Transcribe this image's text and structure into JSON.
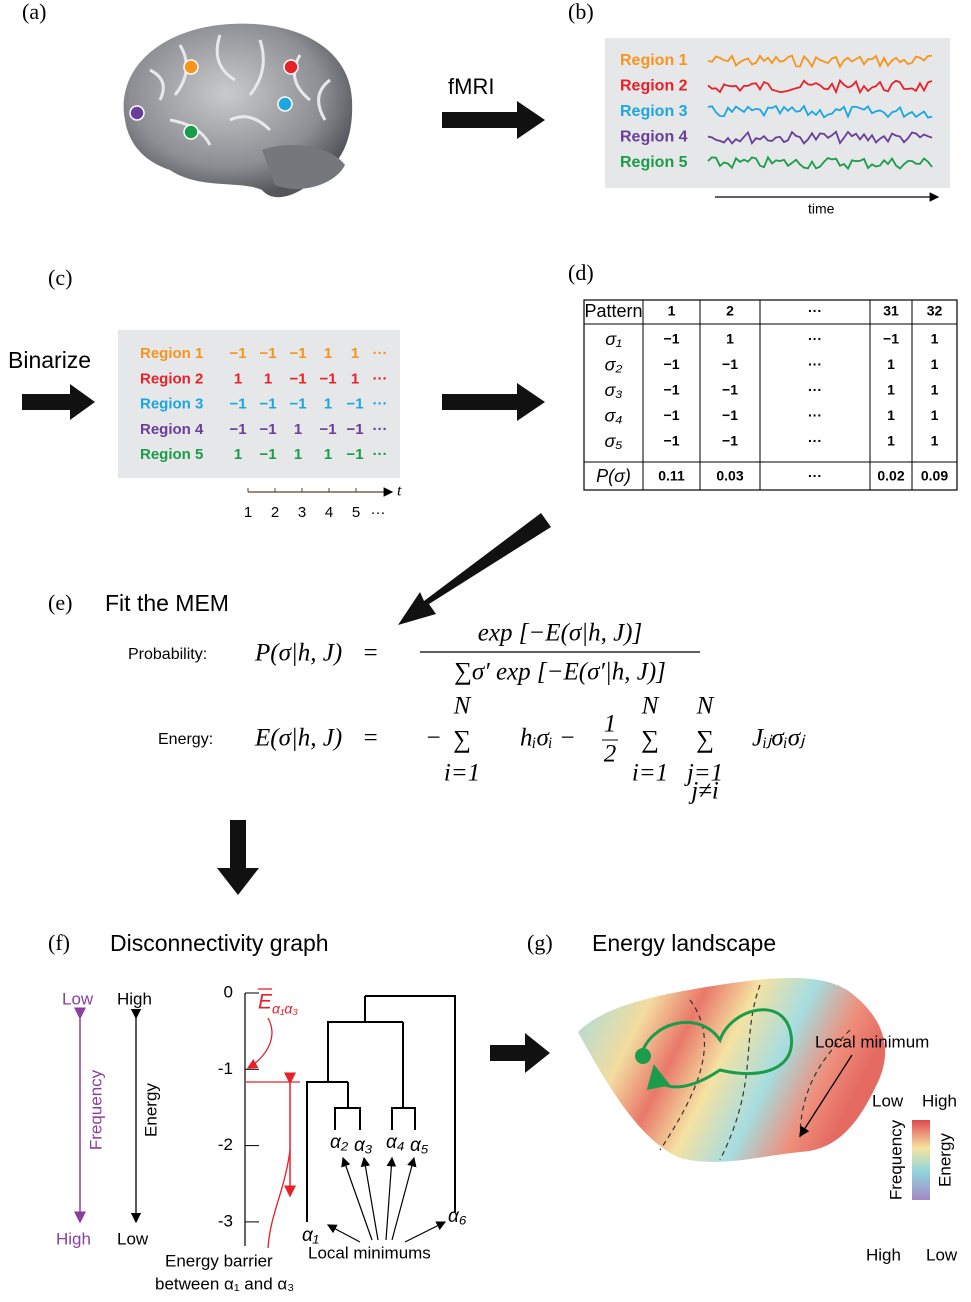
{
  "a": {
    "label": "(a)"
  },
  "fmri": "fMRI",
  "b": {
    "label": "(b)",
    "regions": [
      "Region 1",
      "Region 2",
      "Region 3",
      "Region 4",
      "Region 5"
    ],
    "time": "time"
  },
  "c": {
    "label": "(c)",
    "binarize": "Binarize",
    "regions": [
      "Region 1",
      "Region 2",
      "Region 3",
      "Region 4",
      "Region 5"
    ],
    "rows": [
      [
        "−1",
        "−1",
        "−1",
        "1",
        "1",
        "···"
      ],
      [
        "1",
        "1",
        "−1",
        "−1",
        "1",
        "···"
      ],
      [
        "−1",
        "−1",
        "−1",
        "1",
        "−1",
        "···"
      ],
      [
        "−1",
        "−1",
        "1",
        "−1",
        "−1",
        "···"
      ],
      [
        "1",
        "−1",
        "1",
        "1",
        "−1",
        "···"
      ]
    ],
    "t": "t",
    "ticks": [
      "1",
      "2",
      "3",
      "4",
      "5",
      "···"
    ]
  },
  "d": {
    "label": "(d)",
    "header": [
      "Pattern",
      "1",
      "2",
      "···",
      "31",
      "32"
    ],
    "rows": [
      [
        "σ₁",
        "−1",
        "1",
        "···",
        "−1",
        "1"
      ],
      [
        "σ₂",
        "−1",
        "−1",
        "···",
        "1",
        "1"
      ],
      [
        "σ₃",
        "−1",
        "−1",
        "···",
        "1",
        "1"
      ],
      [
        "σ₄",
        "−1",
        "−1",
        "···",
        "1",
        "1"
      ],
      [
        "σ₅",
        "−1",
        "−1",
        "···",
        "1",
        "1"
      ],
      [
        "P(σ)",
        "0.11",
        "0.03",
        "···",
        "0.02",
        "0.09"
      ]
    ]
  },
  "e": {
    "label": "(e)",
    "title": "Fit the MEM",
    "probability_label": "Probability:",
    "energy_label": "Energy:",
    "prob_lhs": "P(σ|h, J)",
    "equals": "=",
    "numerator": "exp [−E(σ|h, J)]",
    "denominator": "∑σ′ exp [−E(σ′|h, J)]",
    "energy_lhs": "E(σ|h, J)",
    "energy_rhs": [
      {
        "text": "−"
      },
      {
        "sum": "∑",
        "upper": "N",
        "lower": "i=1"
      },
      {
        "text": "hᵢσᵢ −"
      },
      {
        "num": "1",
        "den": "2"
      },
      {
        "sum": "∑",
        "upper": "N",
        "lower": "i=1"
      },
      {
        "sum": "∑",
        "upper": "N",
        "lower": "j=1",
        "lower2": "j≠i"
      },
      {
        "text": "Jᵢⱼσᵢσⱼ"
      }
    ]
  },
  "f": {
    "label": "(f)",
    "title": "Disconnectivity graph",
    "freq_low": "Low",
    "energy_high": "High",
    "frequency": "Frequency",
    "energy": "Energy",
    "freq_high": "High",
    "energy_low": "Low",
    "yticks": [
      0,
      -1,
      -2,
      -3
    ],
    "barrier_symbol": {
      "main": "E",
      "sub": "α₁α₃"
    },
    "minima": [
      "α₁",
      "α₂",
      "α₃",
      "α₄",
      "α₅",
      "α₆"
    ],
    "local_minimums": "Local minimums",
    "barrier_note": [
      "Energy barrier",
      "between α₁ and α₃"
    ]
  },
  "g": {
    "label": "(g)",
    "title": "Energy landscape",
    "local_minimum": "Local minimum",
    "freq_low": "Low",
    "energy_high": "High",
    "frequency": "Frequency",
    "energy": "Energy",
    "freq_high": "High",
    "energy_low": "Low"
  }
}
